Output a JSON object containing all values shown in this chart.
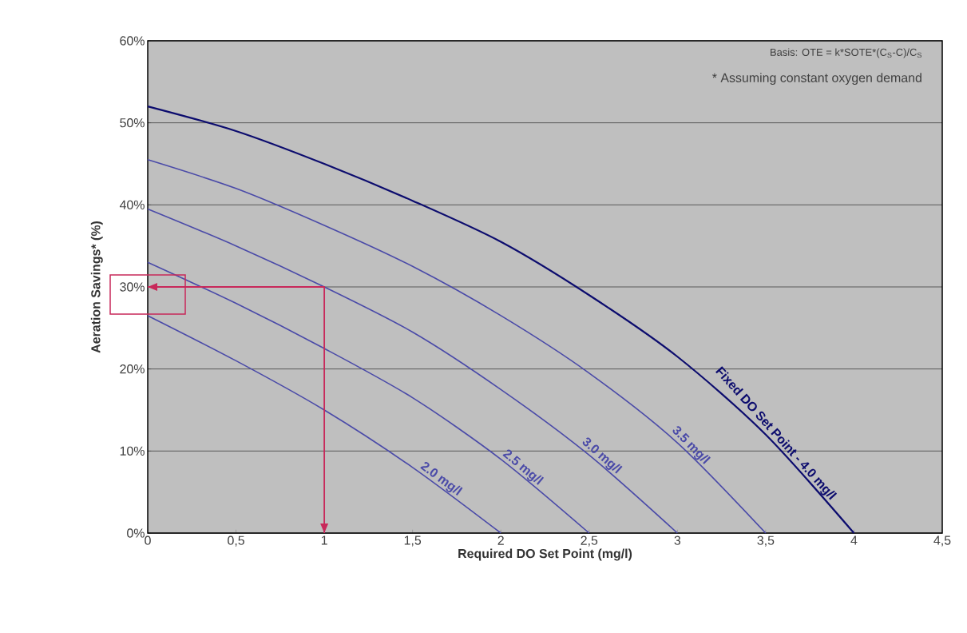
{
  "chart_data": {
    "type": "line",
    "xlabel": "Required DO Set Point (mg/l)",
    "ylabel": "Aeration Savings* (%)",
    "annotations": [
      "Basis: OTE = k*SOTE*(C$_{S}$-C)/C$_{S}$",
      "* Assuming constant oxygen demand"
    ],
    "series": [
      {
        "name": "2.0 mg/l",
        "color": "#4a4aa8",
        "x": [
          0,
          0.5,
          1,
          1.5,
          2
        ],
        "values": [
          26.5,
          21,
          15,
          8,
          0
        ]
      },
      {
        "name": "2.5 mg/l",
        "color": "#4a4aa8",
        "x": [
          0,
          0.5,
          1,
          1.5,
          2,
          2.5
        ],
        "values": [
          33,
          28,
          22.5,
          16.5,
          9,
          0
        ]
      },
      {
        "name": "3.0 mg/l",
        "color": "#4a4aa8",
        "x": [
          0,
          0.5,
          1,
          1.5,
          2,
          2.5,
          3
        ],
        "values": [
          39.5,
          35,
          30,
          24.5,
          17.5,
          9.5,
          0
        ]
      },
      {
        "name": "3.5 mg/l",
        "color": "#4a4aa8",
        "x": [
          0,
          0.5,
          1,
          1.5,
          2,
          2.5,
          3,
          3.5
        ],
        "values": [
          45.5,
          42,
          37.5,
          32.5,
          26.5,
          19.5,
          11,
          0
        ]
      },
      {
        "name": "Fixed DO Set Point - 4.0 mg/l",
        "color": "#0c0c6e",
        "x": [
          0,
          0.5,
          1,
          1.5,
          2,
          2.5,
          3,
          3.5,
          4
        ],
        "values": [
          52,
          49,
          45,
          40.5,
          35.5,
          29,
          21.5,
          12,
          0
        ]
      },
      {
        "color": "#c8285a",
        "x": [
          0,
          1,
          1
        ],
        "values": [
          30,
          30,
          0
        ]
      }
    ],
    "xlim": [
      0,
      4.5
    ],
    "xticks": [
      0,
      {
        "value": 0.5,
        "label": "0,5"
      },
      1,
      {
        "value": 1.5,
        "label": "1,5"
      },
      2,
      {
        "value": 2.5,
        "label": "2,5"
      },
      3,
      {
        "value": 3.5,
        "label": "3,5"
      },
      4,
      {
        "value": 4.5,
        "label": "4,5"
      }
    ],
    "ylim": [
      0,
      60
    ],
    "yticks": [
      {
        "value": 0,
        "label": "0%"
      },
      {
        "value": 10,
        "label": "10%"
      },
      {
        "value": 20,
        "label": "20%"
      },
      {
        "value": 30,
        "label": "30%"
      },
      {
        "value": 40,
        "label": "40%"
      },
      {
        "value": 50,
        "label": "50%"
      },
      {
        "value": 60,
        "label": "60%"
      }
    ],
    "grid": "y"
  }
}
